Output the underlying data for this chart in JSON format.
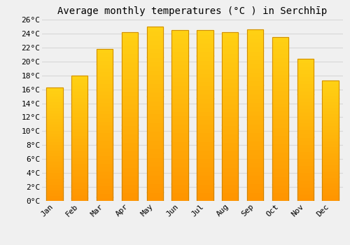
{
  "title": "Average monthly temperatures (°C ) in Serchhīp",
  "months": [
    "Jan",
    "Feb",
    "Mar",
    "Apr",
    "May",
    "Jun",
    "Jul",
    "Aug",
    "Sep",
    "Oct",
    "Nov",
    "Dec"
  ],
  "temperatures": [
    16.3,
    18.0,
    21.8,
    24.2,
    25.0,
    24.5,
    24.5,
    24.2,
    24.6,
    23.5,
    20.4,
    17.3
  ],
  "ylim": [
    0,
    26
  ],
  "yticks": [
    0,
    2,
    4,
    6,
    8,
    10,
    12,
    14,
    16,
    18,
    20,
    22,
    24,
    26
  ],
  "bar_color_mid": "#FFC107",
  "bar_color_light": "#FFD966",
  "bar_color_dark": "#E69500",
  "background_color": "#f0f0f0",
  "grid_color": "#d8d8d8",
  "title_fontsize": 10,
  "tick_fontsize": 8,
  "font_family": "monospace"
}
